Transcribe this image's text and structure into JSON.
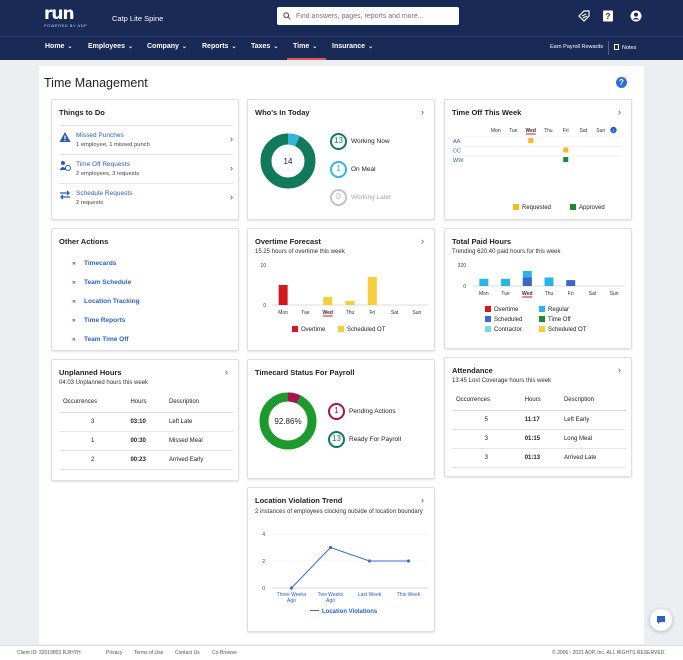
{
  "header": {
    "logo": "run",
    "logo_sub": "POWERED BY ADP",
    "company": "Catp Lite Spine",
    "search_placeholder": "Find answers, pages, reports and more..."
  },
  "nav": {
    "items": [
      "Home",
      "Employees",
      "Company",
      "Reports",
      "Taxes",
      "Time",
      "Insurance"
    ],
    "active": "Time",
    "earn": "Earn Payroll Rewards",
    "notes": "Notes"
  },
  "page": {
    "title": "Time Management",
    "help": "?"
  },
  "todo": {
    "title": "Things to Do",
    "items": [
      {
        "label": "Missed Punches",
        "detail": "1 employee, 1 missed punch"
      },
      {
        "label": "Time Off Requests",
        "detail": "2 employees, 3 requests"
      },
      {
        "label": "Schedule Requests",
        "detail": "2 requests"
      }
    ]
  },
  "other_actions": {
    "title": "Other Actions",
    "items": [
      "Timecards",
      "Team Schedule",
      "Location Tracking",
      "Time Reports",
      "Team Time Off"
    ]
  },
  "unplanned": {
    "title": "Unplanned Hours",
    "subtitle": "04:03 Unplanned hours this week",
    "headers": [
      "Occurrences",
      "Hours",
      "Description"
    ],
    "rows": [
      [
        "3",
        "03:10",
        "Left Late"
      ],
      [
        "1",
        "00:30",
        "Missed Meal"
      ],
      [
        "2",
        "00:23",
        "Arrived Early"
      ]
    ]
  },
  "whos_in": {
    "title": "Who's In Today",
    "center": "14",
    "statuses": [
      {
        "count": "13",
        "label": "Working Now",
        "color": "#117a5a"
      },
      {
        "count": "1",
        "label": "On Meal",
        "color": "#33b5dd"
      },
      {
        "count": "0",
        "label": "Working Later",
        "color": "#b5b5b5"
      }
    ]
  },
  "overtime": {
    "title": "Overtime Forecast",
    "subtitle": "15.25 hours of overtime this week",
    "legend": [
      "Overtime",
      "Scheduled OT"
    ]
  },
  "timecard": {
    "title": "Timecard Status For Payroll",
    "center": "92.86%",
    "statuses": [
      {
        "count": "1",
        "label": "Pending Actions",
        "color": "#a8124f"
      },
      {
        "count": "13",
        "label": "Ready For Payroll",
        "color": "#117a5a"
      }
    ]
  },
  "location": {
    "title": "Location Violation Trend",
    "subtitle": "2 instances of employees clocking outside of location boundary",
    "legend": "Location Violations"
  },
  "timeoff": {
    "title": "Time Off This Week",
    "days": [
      "Mon",
      "Tue",
      "Wed",
      "Thu",
      "Fri",
      "Sat",
      "Sun"
    ],
    "people": [
      "AA",
      "CC",
      "WW"
    ],
    "legend": [
      {
        "label": "Requested",
        "color": "#f6b91e"
      },
      {
        "label": "Approved",
        "color": "#1c8a2e"
      }
    ]
  },
  "total_paid": {
    "title": "Total Paid Hours",
    "subtitle": "Trending 620.40 paid hours for this week",
    "legend": [
      {
        "label": "Overtime",
        "color": "#d7171f"
      },
      {
        "label": "Regular",
        "color": "#29b6e6"
      },
      {
        "label": "Scheduled",
        "color": "#3f66c9"
      },
      {
        "label": "Time Off",
        "color": "#1c8a2e"
      },
      {
        "label": "Contractor",
        "color": "#7fd4ea"
      },
      {
        "label": "Scheduled OT",
        "color": "#f6cd3a"
      }
    ]
  },
  "attendance": {
    "title": "Attendance",
    "subtitle": "13:45 Lost Coverage hours this week",
    "headers": [
      "Occurrences",
      "Hours",
      "Description"
    ],
    "rows": [
      [
        "5",
        "11:17",
        "Left Early"
      ],
      [
        "3",
        "01:15",
        "Long Meal"
      ],
      [
        "3",
        "01:13",
        "Arrived Late"
      ]
    ]
  },
  "chart_data": [
    {
      "id": "overtime-forecast",
      "type": "bar",
      "categories": [
        "Mon",
        "Tue",
        "Wed",
        "Thu",
        "Fri",
        "Sat",
        "Sun"
      ],
      "ylim": [
        0,
        10
      ],
      "yticks": [
        "0",
        "10"
      ],
      "series": [
        {
          "name": "Overtime",
          "color": "#d7171f",
          "values": [
            5,
            0,
            0,
            0,
            0,
            0,
            0
          ]
        },
        {
          "name": "Scheduled OT",
          "color": "#f6cd3a",
          "values": [
            0,
            0,
            2,
            1,
            7,
            0,
            0
          ]
        }
      ]
    },
    {
      "id": "total-paid-hours",
      "type": "bar",
      "categories": [
        "Mon",
        "Tue",
        "Wed",
        "Thu",
        "Fri",
        "Sat",
        "Sun"
      ],
      "ylim": [
        0,
        320
      ],
      "yticks": [
        "0",
        "320"
      ],
      "values": [
        110,
        110,
        230,
        130,
        90,
        0,
        0
      ],
      "secondary_values": [
        0,
        0,
        130,
        0,
        0,
        0,
        0
      ]
    },
    {
      "id": "location-violation-trend",
      "type": "line",
      "categories": [
        "Three Weeks Ago",
        "Two Weeks Ago",
        "Last Week",
        "This Week"
      ],
      "ylim": [
        0,
        4
      ],
      "yticks": [
        "0",
        "2",
        "4"
      ],
      "series": [
        {
          "name": "Location Violations",
          "values": [
            0,
            3,
            2,
            2
          ]
        }
      ]
    },
    {
      "id": "whos-in-today",
      "type": "pie",
      "labels": [
        "Working Now",
        "On Meal"
      ],
      "values": [
        13,
        1
      ]
    },
    {
      "id": "timecard-status",
      "type": "pie",
      "labels": [
        "Ready For Payroll",
        "Pending Actions"
      ],
      "values": [
        92.86,
        7.14
      ]
    }
  ],
  "footer": {
    "client": "Client ID: 32019803 RJ/HYH",
    "links": [
      "Privacy",
      "Terms of Use",
      "Contact Us",
      "Co-Browse"
    ],
    "copyright": "© 2006 - 2021 ADP, Inc. ALL RIGHTS RESERVED."
  }
}
